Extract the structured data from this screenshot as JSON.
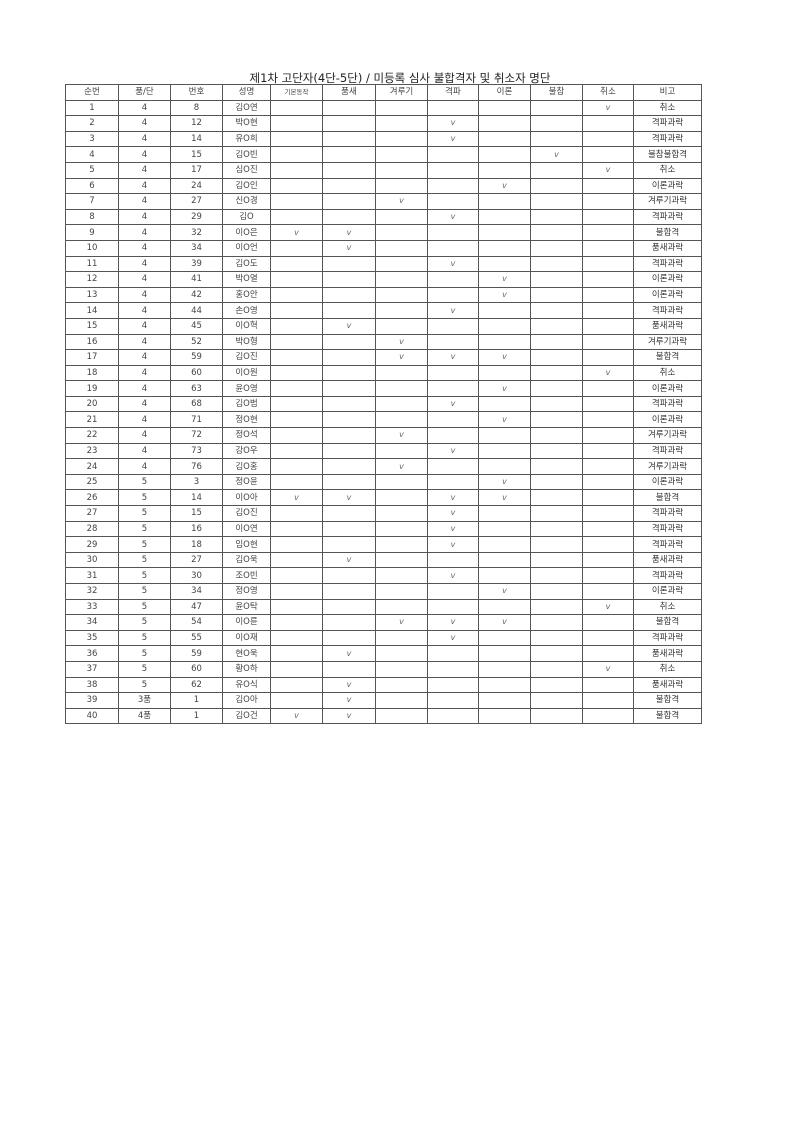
{
  "title": "제1차 고단자(4단-5단) / 미등록 심사 불합격자 및 취소자 명단",
  "columns": [
    "순번",
    "품/단",
    "번호",
    "성명",
    "기본동작",
    "품새",
    "겨루기",
    "격파",
    "이론",
    "불참",
    "취소",
    "비고"
  ],
  "rows": [
    [
      "1",
      "4",
      "8",
      "김O연",
      "",
      "",
      "",
      "",
      "",
      "",
      "v",
      "취소"
    ],
    [
      "2",
      "4",
      "12",
      "박O현",
      "",
      "",
      "",
      "v",
      "",
      "",
      "",
      "격파과락"
    ],
    [
      "3",
      "4",
      "14",
      "유O희",
      "",
      "",
      "",
      "v",
      "",
      "",
      "",
      "격파과락"
    ],
    [
      "4",
      "4",
      "15",
      "김O빈",
      "",
      "",
      "",
      "",
      "",
      "v",
      "",
      "불참불합격"
    ],
    [
      "5",
      "4",
      "17",
      "심O진",
      "",
      "",
      "",
      "",
      "",
      "",
      "v",
      "취소"
    ],
    [
      "6",
      "4",
      "24",
      "김O인",
      "",
      "",
      "",
      "",
      "v",
      "",
      "",
      "이론과락"
    ],
    [
      "7",
      "4",
      "27",
      "신O경",
      "",
      "",
      "v",
      "",
      "",
      "",
      "",
      "겨루기과락"
    ],
    [
      "8",
      "4",
      "29",
      "김O",
      "",
      "",
      "",
      "v",
      "",
      "",
      "",
      "격파과락"
    ],
    [
      "9",
      "4",
      "32",
      "이O은",
      "v",
      "v",
      "",
      "",
      "",
      "",
      "",
      "불합격"
    ],
    [
      "10",
      "4",
      "34",
      "이O언",
      "",
      "v",
      "",
      "",
      "",
      "",
      "",
      "품새과락"
    ],
    [
      "11",
      "4",
      "39",
      "김O도",
      "",
      "",
      "",
      "v",
      "",
      "",
      "",
      "격파과락"
    ],
    [
      "12",
      "4",
      "41",
      "박O열",
      "",
      "",
      "",
      "",
      "v",
      "",
      "",
      "이론과락"
    ],
    [
      "13",
      "4",
      "42",
      "홍O안",
      "",
      "",
      "",
      "",
      "v",
      "",
      "",
      "이론과락"
    ],
    [
      "14",
      "4",
      "44",
      "손O영",
      "",
      "",
      "",
      "v",
      "",
      "",
      "",
      "격파과락"
    ],
    [
      "15",
      "4",
      "45",
      "이O혁",
      "",
      "v",
      "",
      "",
      "",
      "",
      "",
      "품새과락"
    ],
    [
      "16",
      "4",
      "52",
      "박O형",
      "",
      "",
      "v",
      "",
      "",
      "",
      "",
      "겨루기과락"
    ],
    [
      "17",
      "4",
      "59",
      "김O진",
      "",
      "",
      "v",
      "v",
      "v",
      "",
      "",
      "불합격"
    ],
    [
      "18",
      "4",
      "60",
      "이O원",
      "",
      "",
      "",
      "",
      "",
      "",
      "v",
      "취소"
    ],
    [
      "19",
      "4",
      "63",
      "윤O영",
      "",
      "",
      "",
      "",
      "v",
      "",
      "",
      "이론과락"
    ],
    [
      "20",
      "4",
      "68",
      "김O범",
      "",
      "",
      "",
      "v",
      "",
      "",
      "",
      "격파과락"
    ],
    [
      "21",
      "4",
      "71",
      "정O현",
      "",
      "",
      "",
      "",
      "v",
      "",
      "",
      "이론과락"
    ],
    [
      "22",
      "4",
      "72",
      "정O석",
      "",
      "",
      "v",
      "",
      "",
      "",
      "",
      "겨루기과락"
    ],
    [
      "23",
      "4",
      "73",
      "강O우",
      "",
      "",
      "",
      "v",
      "",
      "",
      "",
      "격파과락"
    ],
    [
      "24",
      "4",
      "76",
      "김O홍",
      "",
      "",
      "v",
      "",
      "",
      "",
      "",
      "겨루기과락"
    ],
    [
      "25",
      "5",
      "3",
      "정O윤",
      "",
      "",
      "",
      "",
      "v",
      "",
      "",
      "이론과락"
    ],
    [
      "26",
      "5",
      "14",
      "이O아",
      "v",
      "v",
      "",
      "v",
      "v",
      "",
      "",
      "불합격"
    ],
    [
      "27",
      "5",
      "15",
      "김O진",
      "",
      "",
      "",
      "v",
      "",
      "",
      "",
      "격파과락"
    ],
    [
      "28",
      "5",
      "16",
      "이O연",
      "",
      "",
      "",
      "v",
      "",
      "",
      "",
      "격파과락"
    ],
    [
      "29",
      "5",
      "18",
      "임O현",
      "",
      "",
      "",
      "v",
      "",
      "",
      "",
      "격파과락"
    ],
    [
      "30",
      "5",
      "27",
      "김O욱",
      "",
      "v",
      "",
      "",
      "",
      "",
      "",
      "품새과락"
    ],
    [
      "31",
      "5",
      "30",
      "조O빈",
      "",
      "",
      "",
      "v",
      "",
      "",
      "",
      "격파과락"
    ],
    [
      "32",
      "5",
      "34",
      "정O영",
      "",
      "",
      "",
      "",
      "v",
      "",
      "",
      "이론과락"
    ],
    [
      "33",
      "5",
      "47",
      "윤O탁",
      "",
      "",
      "",
      "",
      "",
      "",
      "v",
      "취소"
    ],
    [
      "34",
      "5",
      "54",
      "이O륜",
      "",
      "",
      "v",
      "v",
      "v",
      "",
      "",
      "불합격"
    ],
    [
      "35",
      "5",
      "55",
      "이O재",
      "",
      "",
      "",
      "v",
      "",
      "",
      "",
      "격파과락"
    ],
    [
      "36",
      "5",
      "59",
      "현O욱",
      "",
      "v",
      "",
      "",
      "",
      "",
      "",
      "품새과락"
    ],
    [
      "37",
      "5",
      "60",
      "황O하",
      "",
      "",
      "",
      "",
      "",
      "",
      "v",
      "취소"
    ],
    [
      "38",
      "5",
      "62",
      "유O식",
      "",
      "v",
      "",
      "",
      "",
      "",
      "",
      "품새과락"
    ],
    [
      "39",
      "3품",
      "1",
      "김O아",
      "",
      "v",
      "",
      "",
      "",
      "",
      "",
      "불합격"
    ],
    [
      "40",
      "4품",
      "1",
      "김O건",
      "v",
      "v",
      "",
      "",
      "",
      "",
      "",
      "불합격"
    ]
  ]
}
